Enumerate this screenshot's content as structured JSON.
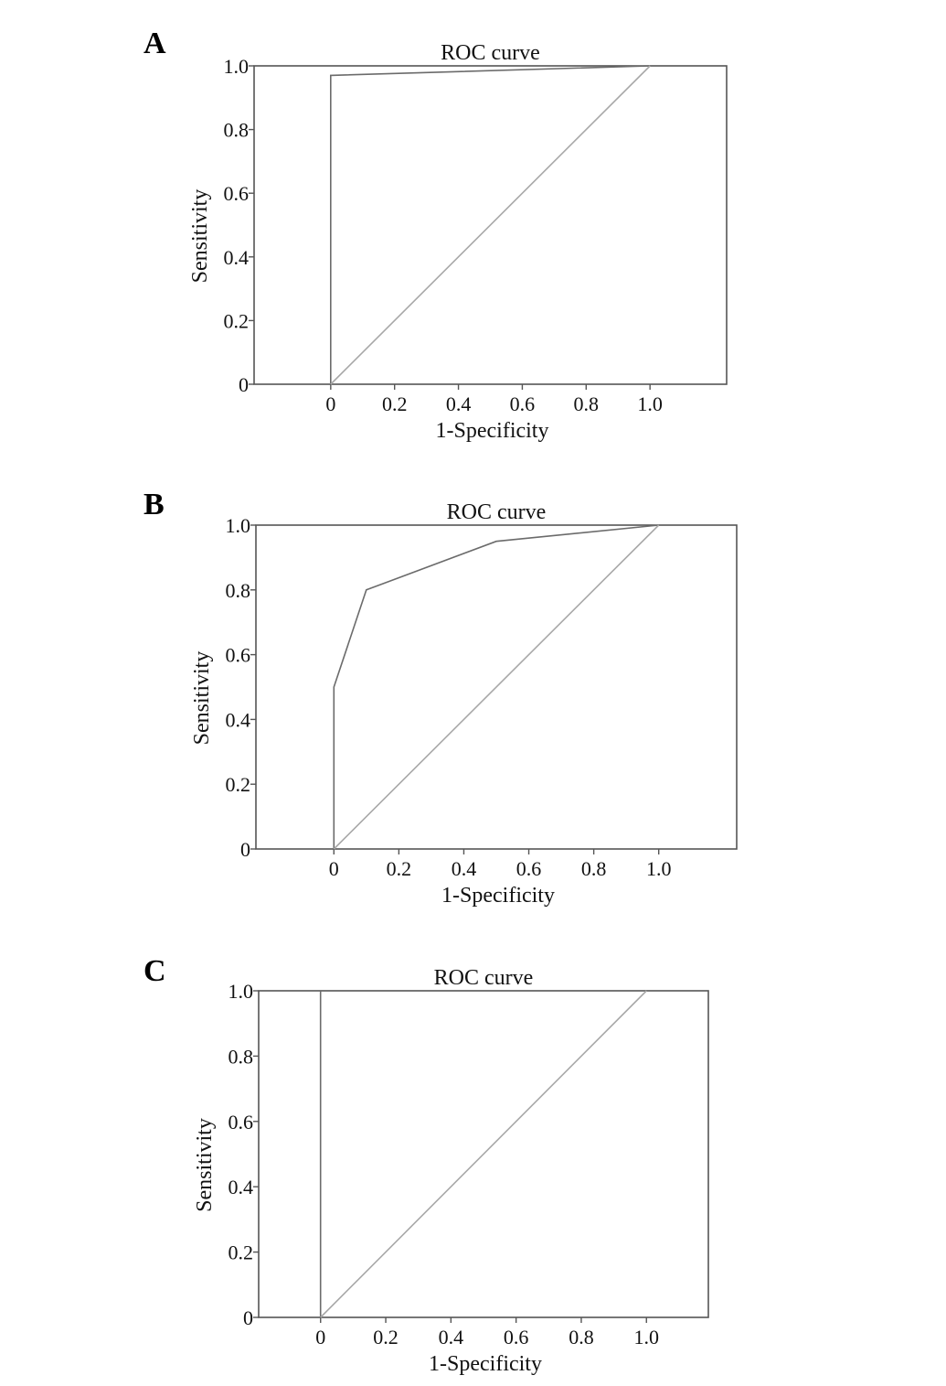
{
  "chart_data": [
    {
      "panel": "A",
      "type": "line",
      "title": "ROC curve",
      "xlabel": "1-Specificity",
      "ylabel": "Sensitivity",
      "xticks": [
        "0",
        "0.2",
        "0.4",
        "0.6",
        "0.8",
        "1.0"
      ],
      "yticks": [
        "0",
        "0.2",
        "0.4",
        "0.6",
        "0.8",
        "1.0"
      ],
      "xlim": [
        -0.24,
        1.24
      ],
      "ylim": [
        0,
        1
      ],
      "grid": false,
      "series": [
        {
          "role": "roc",
          "color": "#6b6b6b",
          "x": [
            0,
            0,
            1
          ],
          "y": [
            0,
            0.97,
            1
          ]
        },
        {
          "role": "reference",
          "color": "#a8a8a8",
          "x": [
            0,
            1
          ],
          "y": [
            0,
            1
          ]
        }
      ]
    },
    {
      "panel": "B",
      "type": "line",
      "title": "ROC curve",
      "xlabel": "1-Specificity",
      "ylabel": "Sensitivity",
      "xticks": [
        "0",
        "0.2",
        "0.4",
        "0.6",
        "0.8",
        "1.0"
      ],
      "yticks": [
        "0",
        "0.2",
        "0.4",
        "0.6",
        "0.8",
        "1.0"
      ],
      "xlim": [
        -0.24,
        1.24
      ],
      "ylim": [
        0,
        1
      ],
      "grid": false,
      "series": [
        {
          "role": "roc",
          "color": "#6b6b6b",
          "x": [
            0,
            0,
            0.1,
            0.5,
            1
          ],
          "y": [
            0,
            0.5,
            0.8,
            0.95,
            1
          ]
        },
        {
          "role": "reference",
          "color": "#a8a8a8",
          "x": [
            0,
            1
          ],
          "y": [
            0,
            1
          ]
        }
      ]
    },
    {
      "panel": "C",
      "type": "line",
      "title": "ROC curve",
      "xlabel": "1-Specificity",
      "ylabel": "Sensitivity",
      "xticks": [
        "0",
        "0.2",
        "0.4",
        "0.6",
        "0.8",
        "1.0"
      ],
      "yticks": [
        "0",
        "0.2",
        "0.4",
        "0.6",
        "0.8",
        "1.0"
      ],
      "xlim": [
        -0.19,
        1.19
      ],
      "ylim": [
        0,
        1
      ],
      "grid": false,
      "series": [
        {
          "role": "roc",
          "color": "#6b6b6b",
          "x": [
            0,
            0,
            1
          ],
          "y": [
            0,
            1,
            1
          ]
        },
        {
          "role": "reference",
          "color": "#a8a8a8",
          "x": [
            0,
            1
          ],
          "y": [
            0,
            1
          ]
        }
      ]
    }
  ]
}
